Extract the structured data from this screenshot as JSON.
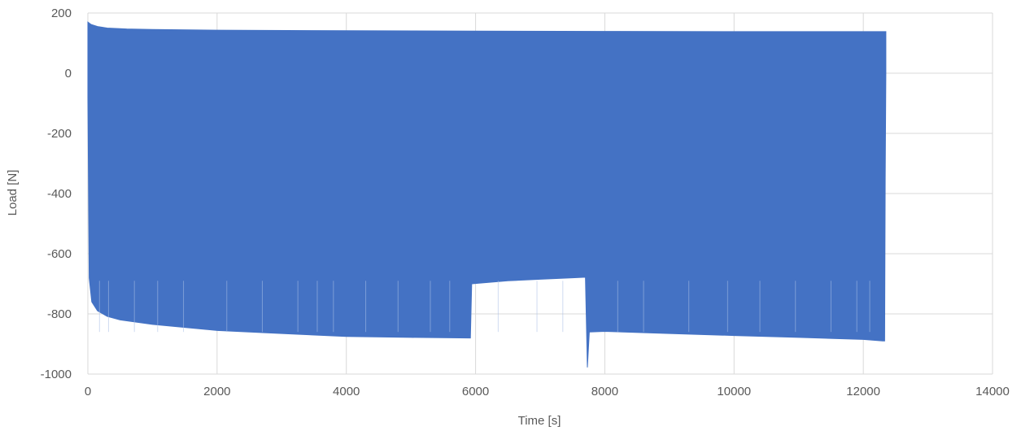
{
  "chart_data": {
    "type": "area",
    "title": "",
    "xlabel": "Time [s]",
    "ylabel": "Load [N]",
    "xlim": [
      0,
      14000
    ],
    "ylim": [
      -1000,
      200
    ],
    "xticks": [
      "0",
      "2000",
      "4000",
      "6000",
      "8000",
      "10000",
      "12000",
      "14000"
    ],
    "yticks": [
      "200",
      "0",
      "-200",
      "-400",
      "-600",
      "-800",
      "-1000"
    ],
    "grid": true,
    "legend": "none",
    "series": [
      {
        "color": "#4472c4",
        "upper_envelope": [
          [
            0,
            170
          ],
          [
            50,
            162
          ],
          [
            150,
            155
          ],
          [
            300,
            150
          ],
          [
            600,
            147
          ],
          [
            1000,
            145
          ],
          [
            2000,
            143
          ],
          [
            4000,
            141
          ],
          [
            6000,
            140
          ],
          [
            8000,
            139
          ],
          [
            10000,
            138
          ],
          [
            12000,
            138
          ],
          [
            12350,
            138
          ]
        ],
        "lower_envelope": [
          [
            0,
            -80
          ],
          [
            20,
            -680
          ],
          [
            60,
            -760
          ],
          [
            150,
            -790
          ],
          [
            300,
            -808
          ],
          [
            500,
            -820
          ],
          [
            1000,
            -835
          ],
          [
            2000,
            -855
          ],
          [
            3000,
            -865
          ],
          [
            4000,
            -875
          ],
          [
            5000,
            -878
          ],
          [
            5900,
            -880
          ],
          [
            5920,
            -880
          ],
          [
            5940,
            -700
          ],
          [
            6500,
            -690
          ],
          [
            7000,
            -685
          ],
          [
            7500,
            -680
          ],
          [
            7700,
            -678
          ],
          [
            7730,
            -978
          ],
          [
            7760,
            -860
          ],
          [
            8000,
            -858
          ],
          [
            9000,
            -865
          ],
          [
            10000,
            -872
          ],
          [
            11000,
            -878
          ],
          [
            12000,
            -885
          ],
          [
            12300,
            -890
          ],
          [
            12330,
            -890
          ],
          [
            12340,
            -350
          ],
          [
            12350,
            0
          ]
        ]
      }
    ]
  }
}
